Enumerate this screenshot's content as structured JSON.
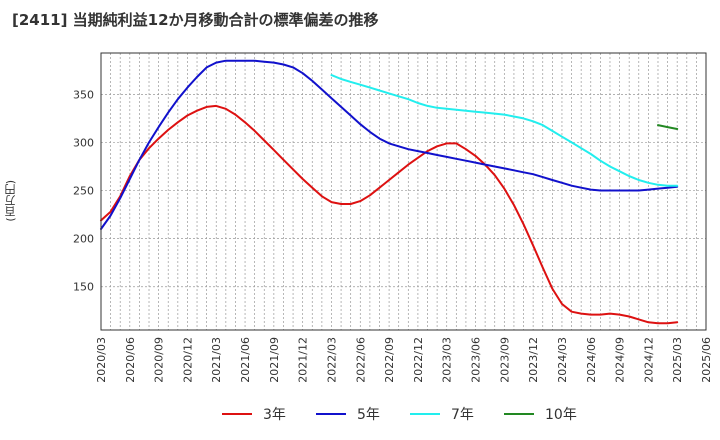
{
  "title": "[2411]  当期純利益12か月移動合計の標準偏差の推移",
  "chart_data": {
    "type": "line",
    "title": "[2411]  当期純利益12か月移動合計の標準偏差の推移",
    "ylabel": "(百万円)",
    "xlabel": "",
    "ylim": [
      105,
      393
    ],
    "yticks": [
      150,
      200,
      250,
      300,
      350
    ],
    "x_ticks": [
      "2020/03",
      "2020/06",
      "2020/09",
      "2020/12",
      "2021/03",
      "2021/06",
      "2021/09",
      "2021/12",
      "2022/03",
      "2022/06",
      "2022/09",
      "2022/12",
      "2023/03",
      "2023/06",
      "2023/09",
      "2023/12",
      "2024/03",
      "2024/06",
      "2024/09",
      "2024/12",
      "2025/03",
      "2025/06"
    ],
    "grid": true,
    "legend_position": "bottom",
    "series": [
      {
        "name": "3年",
        "color": "#dd1111",
        "points": [
          [
            "2020/03",
            219
          ],
          [
            "2020/04",
            228
          ],
          [
            "2020/05",
            244
          ],
          [
            "2020/06",
            265
          ],
          [
            "2020/07",
            282
          ],
          [
            "2020/08",
            294
          ],
          [
            "2020/09",
            304
          ],
          [
            "2020/10",
            313
          ],
          [
            "2020/11",
            321
          ],
          [
            "2020/12",
            328
          ],
          [
            "2021/01",
            333
          ],
          [
            "2021/02",
            337
          ],
          [
            "2021/03",
            338
          ],
          [
            "2021/04",
            335
          ],
          [
            "2021/05",
            329
          ],
          [
            "2021/06",
            321
          ],
          [
            "2021/07",
            312
          ],
          [
            "2021/08",
            302
          ],
          [
            "2021/09",
            292
          ],
          [
            "2021/10",
            282
          ],
          [
            "2021/11",
            272
          ],
          [
            "2021/12",
            262
          ],
          [
            "2022/01",
            253
          ],
          [
            "2022/02",
            244
          ],
          [
            "2022/03",
            238
          ],
          [
            "2022/04",
            236
          ],
          [
            "2022/05",
            236
          ],
          [
            "2022/06",
            239
          ],
          [
            "2022/07",
            245
          ],
          [
            "2022/08",
            253
          ],
          [
            "2022/09",
            261
          ],
          [
            "2022/10",
            269
          ],
          [
            "2022/11",
            277
          ],
          [
            "2022/12",
            284
          ],
          [
            "2023/01",
            291
          ],
          [
            "2023/02",
            296
          ],
          [
            "2023/03",
            299
          ],
          [
            "2023/04",
            299
          ],
          [
            "2023/05",
            293
          ],
          [
            "2023/06",
            286
          ],
          [
            "2023/07",
            277
          ],
          [
            "2023/08",
            266
          ],
          [
            "2023/09",
            252
          ],
          [
            "2023/10",
            235
          ],
          [
            "2023/11",
            215
          ],
          [
            "2023/12",
            193
          ],
          [
            "2024/01",
            170
          ],
          [
            "2024/02",
            148
          ],
          [
            "2024/03",
            132
          ],
          [
            "2024/04",
            124
          ],
          [
            "2024/05",
            122
          ],
          [
            "2024/06",
            121
          ],
          [
            "2024/07",
            121
          ],
          [
            "2024/08",
            122
          ],
          [
            "2024/09",
            121
          ],
          [
            "2024/10",
            119
          ],
          [
            "2024/11",
            116
          ],
          [
            "2024/12",
            113
          ],
          [
            "2025/01",
            112
          ],
          [
            "2025/02",
            112
          ],
          [
            "2025/03",
            113
          ]
        ]
      },
      {
        "name": "5年",
        "color": "#1111cc",
        "points": [
          [
            "2020/03",
            210
          ],
          [
            "2020/04",
            224
          ],
          [
            "2020/05",
            242
          ],
          [
            "2020/06",
            262
          ],
          [
            "2020/07",
            282
          ],
          [
            "2020/08",
            300
          ],
          [
            "2020/09",
            316
          ],
          [
            "2020/10",
            331
          ],
          [
            "2020/11",
            345
          ],
          [
            "2020/12",
            357
          ],
          [
            "2021/01",
            368
          ],
          [
            "2021/02",
            378
          ],
          [
            "2021/03",
            383
          ],
          [
            "2021/04",
            385
          ],
          [
            "2021/05",
            385
          ],
          [
            "2021/06",
            385
          ],
          [
            "2021/07",
            385
          ],
          [
            "2021/08",
            384
          ],
          [
            "2021/09",
            383
          ],
          [
            "2021/10",
            381
          ],
          [
            "2021/11",
            378
          ],
          [
            "2021/12",
            372
          ],
          [
            "2022/01",
            364
          ],
          [
            "2022/02",
            355
          ],
          [
            "2022/03",
            346
          ],
          [
            "2022/04",
            337
          ],
          [
            "2022/05",
            328
          ],
          [
            "2022/06",
            319
          ],
          [
            "2022/07",
            311
          ],
          [
            "2022/08",
            304
          ],
          [
            "2022/09",
            299
          ],
          [
            "2022/10",
            296
          ],
          [
            "2022/11",
            293
          ],
          [
            "2022/12",
            291
          ],
          [
            "2023/01",
            289
          ],
          [
            "2023/02",
            287
          ],
          [
            "2023/03",
            285
          ],
          [
            "2023/04",
            283
          ],
          [
            "2023/05",
            281
          ],
          [
            "2023/06",
            279
          ],
          [
            "2023/07",
            277
          ],
          [
            "2023/08",
            275
          ],
          [
            "2023/09",
            273
          ],
          [
            "2023/10",
            271
          ],
          [
            "2023/11",
            269
          ],
          [
            "2023/12",
            267
          ],
          [
            "2024/01",
            264
          ],
          [
            "2024/02",
            261
          ],
          [
            "2024/03",
            258
          ],
          [
            "2024/04",
            255
          ],
          [
            "2024/05",
            253
          ],
          [
            "2024/06",
            251
          ],
          [
            "2024/07",
            250
          ],
          [
            "2024/08",
            250
          ],
          [
            "2024/09",
            250
          ],
          [
            "2024/10",
            250
          ],
          [
            "2024/11",
            250
          ],
          [
            "2024/12",
            251
          ],
          [
            "2025/01",
            252
          ],
          [
            "2025/02",
            253
          ],
          [
            "2025/03",
            254
          ]
        ]
      },
      {
        "name": "7年",
        "color": "#22eeee",
        "points": [
          [
            "2022/03",
            370
          ],
          [
            "2022/04",
            366
          ],
          [
            "2022/05",
            363
          ],
          [
            "2022/06",
            360
          ],
          [
            "2022/07",
            357
          ],
          [
            "2022/08",
            354
          ],
          [
            "2022/09",
            351
          ],
          [
            "2022/10",
            348
          ],
          [
            "2022/11",
            345
          ],
          [
            "2022/12",
            341
          ],
          [
            "2023/01",
            338
          ],
          [
            "2023/02",
            336
          ],
          [
            "2023/03",
            335
          ],
          [
            "2023/04",
            334
          ],
          [
            "2023/05",
            333
          ],
          [
            "2023/06",
            332
          ],
          [
            "2023/07",
            331
          ],
          [
            "2023/08",
            330
          ],
          [
            "2023/09",
            329
          ],
          [
            "2023/10",
            327
          ],
          [
            "2023/11",
            325
          ],
          [
            "2023/12",
            322
          ],
          [
            "2024/01",
            318
          ],
          [
            "2024/02",
            312
          ],
          [
            "2024/03",
            306
          ],
          [
            "2024/04",
            300
          ],
          [
            "2024/05",
            294
          ],
          [
            "2024/06",
            288
          ],
          [
            "2024/07",
            281
          ],
          [
            "2024/08",
            275
          ],
          [
            "2024/09",
            270
          ],
          [
            "2024/10",
            265
          ],
          [
            "2024/11",
            261
          ],
          [
            "2024/12",
            258
          ],
          [
            "2025/01",
            256
          ],
          [
            "2025/02",
            255
          ],
          [
            "2025/03",
            255
          ]
        ]
      },
      {
        "name": "10年",
        "color": "#228822",
        "points": [
          [
            "2025/01",
            318
          ],
          [
            "2025/02",
            316
          ],
          [
            "2025/03",
            314
          ]
        ]
      }
    ]
  }
}
